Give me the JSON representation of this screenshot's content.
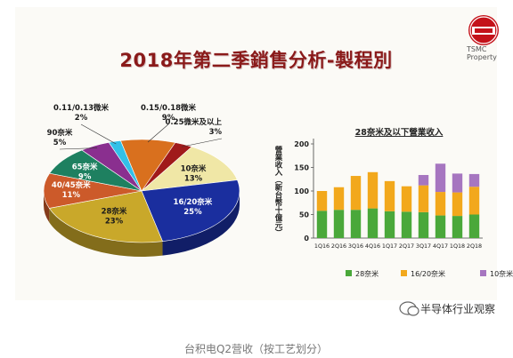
{
  "page": {
    "title": "2018年第二季銷售分析-製程別",
    "logo_text": "TSMC Property",
    "watermark": "半导体行业观察",
    "caption": "台积电Q2营收（按工艺划分）"
  },
  "colors": {
    "title": "#8a1a1a",
    "node_28nm_and_below_green": "#4aa83a",
    "node_16_20_orange": "#f2a81c",
    "node_10_purple": "#a676c0"
  },
  "chart_data": [
    {
      "type": "pie",
      "title": "",
      "slices": [
        {
          "label": "0.25微米及以上",
          "pct": 3,
          "pct_label": "3%",
          "color": "#a01a1a"
        },
        {
          "label": "10奈米",
          "pct": 13,
          "pct_label": "13%",
          "color": "#f0e7a6"
        },
        {
          "label": "16/20奈米",
          "pct": 25,
          "pct_label": "25%",
          "color": "#1a2e9e"
        },
        {
          "label": "28奈米",
          "pct": 23,
          "pct_label": "23%",
          "color": "#c9a82a"
        },
        {
          "label": "40/45奈米",
          "pct": 11,
          "pct_label": "11%",
          "color": "#cc5a2a"
        },
        {
          "label": "65奈米",
          "pct": 9,
          "pct_label": "9%",
          "color": "#1e8060"
        },
        {
          "label": "90奈米",
          "pct": 5,
          "pct_label": "5%",
          "color": "#8a2f8f"
        },
        {
          "label": "0.11/0.13微米",
          "pct": 2,
          "pct_label": "2%",
          "color": "#33c0e8"
        },
        {
          "label": "0.15/0.18微米",
          "pct": 9,
          "pct_label": "9%",
          "color": "#d9701e"
        }
      ]
    },
    {
      "type": "bar",
      "stacked": true,
      "title": "28奈米及以下營業收入",
      "ylabel": "營業收入（新台幣十億元）",
      "ylim": [
        0,
        200
      ],
      "yticks": [
        0,
        50,
        100,
        150,
        200
      ],
      "grid": false,
      "legend_position": "bottom",
      "categories": [
        "1Q16",
        "2Q16",
        "3Q16",
        "4Q16",
        "1Q17",
        "2Q17",
        "3Q17",
        "4Q17",
        "1Q18",
        "2Q18"
      ],
      "series": [
        {
          "name": "28奈米",
          "color": "#4aa83a",
          "values": [
            58,
            60,
            60,
            63,
            57,
            56,
            55,
            48,
            47,
            50
          ]
        },
        {
          "name": "16/20奈米",
          "color": "#f2a81c",
          "values": [
            42,
            48,
            72,
            77,
            64,
            54,
            57,
            50,
            50,
            59
          ]
        },
        {
          "name": "10奈米",
          "color": "#a676c0",
          "values": [
            0,
            0,
            0,
            0,
            0,
            0,
            22,
            60,
            40,
            27
          ]
        }
      ]
    }
  ]
}
